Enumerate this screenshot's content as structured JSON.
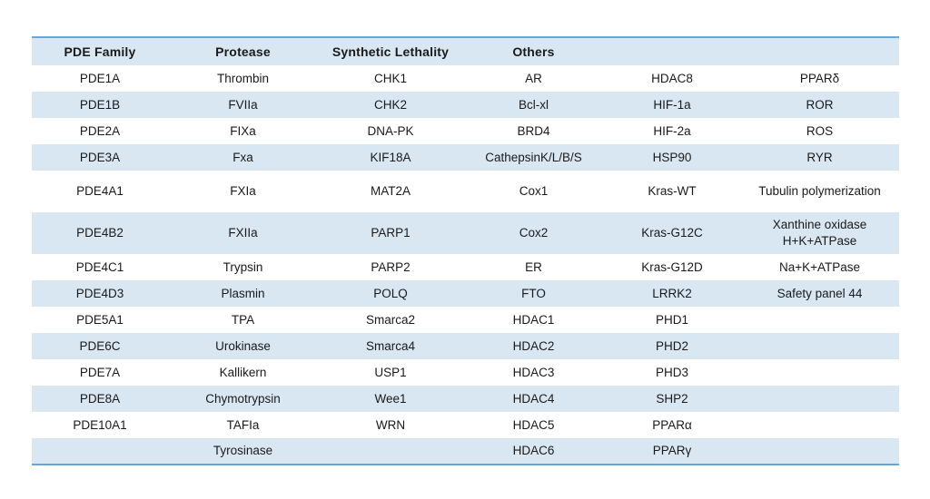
{
  "chart_data": {
    "type": "table",
    "title": "",
    "columns": [
      "PDE Family",
      "Protease",
      "Synthetic Lethality",
      "Others",
      "",
      ""
    ],
    "rows": [
      [
        "PDE1A",
        "Thrombin",
        "CHK1",
        "AR",
        "HDAC8",
        "PPARδ"
      ],
      [
        "PDE1B",
        "FVIIa",
        "CHK2",
        "Bcl-xl",
        "HIF-1a",
        "ROR"
      ],
      [
        "PDE2A",
        "FIXa",
        "DNA-PK",
        "BRD4",
        "HIF-2a",
        "ROS"
      ],
      [
        "PDE3A",
        "Fxa",
        "KIF18A",
        "CathepsinK/L/B/S",
        "HSP90",
        "RYR"
      ],
      [
        "PDE4A1",
        "FXIa",
        "MAT2A",
        "Cox1",
        "Kras-WT",
        "Tubulin polymerization"
      ],
      [
        "PDE4B2",
        "FXIIa",
        "PARP1",
        "Cox2",
        "Kras-G12C",
        "Xanthine oxidase\nH+K+ATPase"
      ],
      [
        "PDE4C1",
        "Trypsin",
        "PARP2",
        "ER",
        "Kras-G12D",
        "Na+K+ATPase"
      ],
      [
        "PDE4D3",
        "Plasmin",
        "POLQ",
        "FTO",
        "LRRK2",
        "Safety panel 44"
      ],
      [
        "PDE5A1",
        "TPA",
        "Smarca2",
        "HDAC1",
        "PHD1",
        ""
      ],
      [
        "PDE6C",
        "Urokinase",
        "Smarca4",
        "HDAC2",
        "PHD2",
        ""
      ],
      [
        "PDE7A",
        "Kallikern",
        "USP1",
        "HDAC3",
        "PHD3",
        ""
      ],
      [
        "PDE8A",
        "Chymotrypsin",
        "Wee1",
        "HDAC4",
        "SHP2",
        ""
      ],
      [
        "PDE10A1",
        "TAFIa",
        "WRN",
        "HDAC5",
        "PPARα",
        ""
      ],
      [
        "",
        "Tyrosinase",
        "",
        "HDAC6",
        "PPARγ",
        ""
      ]
    ],
    "layout": {
      "grid": "off",
      "stripe_pattern": "alternating rows, even rows shaded blue"
    }
  },
  "colors": {
    "stripe_blue": "#d9e7f3",
    "border_blue": "#69a5d6",
    "text_dark": "#1a1a1a",
    "background": "#ffffff"
  }
}
